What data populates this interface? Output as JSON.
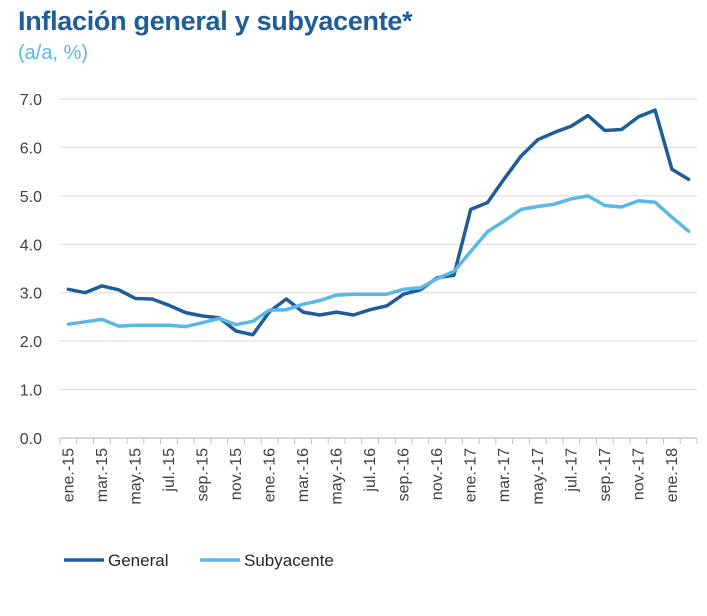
{
  "header": {
    "title": "Inflación general y subyacente*",
    "subtitle": "(a/a, %)"
  },
  "colors": {
    "general": "#1f5d99",
    "subyacente": "#5ab8e8",
    "grid": "#d9d9d9",
    "axis": "#bfbfbf"
  },
  "chart_data": {
    "type": "line",
    "title": "Inflación general y subyacente*",
    "subtitle": "(a/a, %)",
    "ylim": [
      0,
      7
    ],
    "yticks": [
      "0.0",
      "1.0",
      "2.0",
      "3.0",
      "4.0",
      "5.0",
      "6.0",
      "7.0"
    ],
    "x": [
      "ene.-15",
      "feb.-15",
      "mar.-15",
      "abr.-15",
      "may.-15",
      "jun.-15",
      "jul.-15",
      "ago.-15",
      "sep.-15",
      "oct.-15",
      "nov.-15",
      "dic.-15",
      "ene.-16",
      "feb.-16",
      "mar.-16",
      "abr.-16",
      "may.-16",
      "jun.-16",
      "jul.-16",
      "ago.-16",
      "sep.-16",
      "oct.-16",
      "nov.-16",
      "dic.-16",
      "ene.-17",
      "feb.-17",
      "mar.-17",
      "abr.-17",
      "may.-17",
      "jun.-17",
      "jul.-17",
      "ago.-17",
      "sep.-17",
      "oct.-17",
      "nov.-17",
      "dic.-17",
      "ene.-18",
      "feb.-18"
    ],
    "xtick_labels": [
      "ene.-15",
      "mar.-15",
      "may.-15",
      "jul.-15",
      "sep.-15",
      "nov.-15",
      "ene.-16",
      "mar.-16",
      "may.-16",
      "jul.-16",
      "sep.-16",
      "nov.-16",
      "ene.-17",
      "mar.-17",
      "may.-17",
      "jul.-17",
      "sep.-17",
      "nov.-17",
      "ene.-18"
    ],
    "series": [
      {
        "name": "General",
        "values": [
          3.07,
          3.0,
          3.14,
          3.06,
          2.88,
          2.87,
          2.74,
          2.59,
          2.52,
          2.48,
          2.21,
          2.13,
          2.61,
          2.87,
          2.6,
          2.54,
          2.6,
          2.54,
          2.65,
          2.73,
          2.97,
          3.06,
          3.31,
          3.36,
          4.72,
          4.86,
          5.35,
          5.82,
          6.16,
          6.31,
          6.44,
          6.66,
          6.35,
          6.37,
          6.63,
          6.77,
          5.55,
          5.34
        ]
      },
      {
        "name": "Subyacente",
        "values": [
          2.35,
          2.4,
          2.45,
          2.31,
          2.33,
          2.33,
          2.33,
          2.3,
          2.38,
          2.47,
          2.34,
          2.41,
          2.64,
          2.65,
          2.76,
          2.84,
          2.95,
          2.97,
          2.97,
          2.97,
          3.07,
          3.1,
          3.29,
          3.44,
          3.85,
          4.26,
          4.48,
          4.72,
          4.78,
          4.83,
          4.94,
          5.0,
          4.8,
          4.77,
          4.9,
          4.87,
          4.56,
          4.27
        ]
      }
    ],
    "grid": true,
    "legend": "bottom-left"
  }
}
